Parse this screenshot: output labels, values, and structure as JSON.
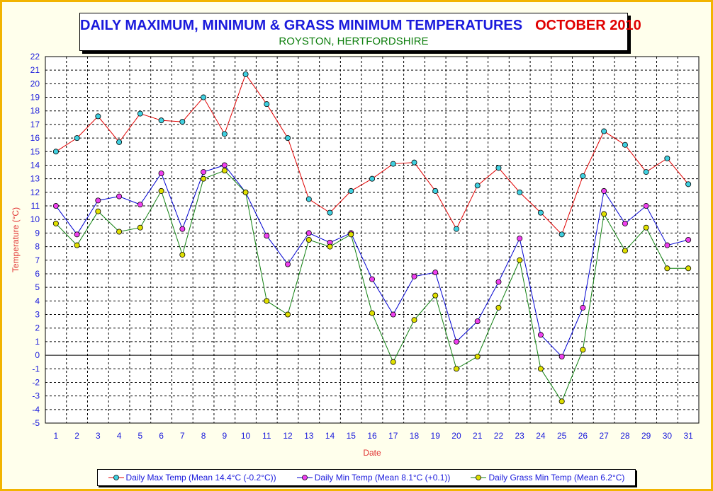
{
  "title": {
    "main": "DAILY MAXIMUM, MINIMUM & GRASS MINIMUM TEMPERATURES",
    "month": "OCTOBER 2010",
    "subtitle": "ROYSTON, HERTFORDSHIRE"
  },
  "colors": {
    "title": "#1a1adc",
    "month": "#e00000",
    "subtitle": "#108010",
    "frame": "#f2b400",
    "axis_title": "#e03030",
    "tick_labels": "#1a1adc"
  },
  "chart_data": {
    "type": "line",
    "title": "DAILY MAXIMUM, MINIMUM & GRASS MINIMUM TEMPERATURES",
    "xlabel": "Date",
    "ylabel": "Temperature (°C)",
    "x": [
      1,
      2,
      3,
      4,
      5,
      6,
      7,
      8,
      9,
      10,
      11,
      12,
      13,
      14,
      15,
      16,
      17,
      18,
      19,
      20,
      21,
      22,
      23,
      24,
      25,
      26,
      27,
      28,
      29,
      30,
      31
    ],
    "ylim": [
      -5,
      22
    ],
    "yticks": [
      -5,
      -4,
      -3,
      -2,
      -1,
      0,
      1,
      2,
      3,
      4,
      5,
      6,
      7,
      8,
      9,
      10,
      11,
      12,
      13,
      14,
      15,
      16,
      17,
      18,
      19,
      20,
      21,
      22
    ],
    "grid": true,
    "legend_position": "bottom",
    "series": [
      {
        "name": "Daily Max Temp (Mean 14.4°C (-0.2°C))",
        "line_color": "#e00000",
        "marker_color": "#40d0e0",
        "values": [
          15.0,
          16.0,
          17.6,
          15.7,
          17.8,
          17.3,
          17.2,
          19.0,
          16.3,
          20.7,
          18.5,
          16.0,
          11.5,
          10.5,
          12.1,
          13.0,
          14.1,
          14.2,
          12.1,
          9.3,
          12.5,
          13.8,
          12.0,
          10.5,
          8.9,
          13.2,
          16.5,
          15.5,
          13.5,
          14.5,
          12.6
        ]
      },
      {
        "name": "Daily Min Temp (Mean 8.1°C (+0.1))",
        "line_color": "#0000d0",
        "marker_color": "#f040f0",
        "values": [
          11.0,
          8.9,
          11.4,
          11.7,
          11.1,
          13.4,
          9.3,
          13.5,
          14.0,
          12.0,
          8.8,
          6.7,
          9.0,
          8.3,
          9.0,
          5.6,
          3.0,
          5.8,
          6.1,
          1.0,
          2.5,
          5.4,
          8.6,
          1.5,
          -0.1,
          3.5,
          12.1,
          9.7,
          11.0,
          8.1,
          8.5
        ]
      },
      {
        "name": "Daily Grass Min Temp (Mean 6.2°C)",
        "line_color": "#108010",
        "marker_color": "#e0e000",
        "values": [
          9.7,
          8.1,
          10.6,
          9.1,
          9.4,
          12.1,
          7.4,
          13.0,
          13.6,
          12.0,
          4.0,
          3.0,
          8.5,
          8.0,
          8.9,
          3.1,
          -0.5,
          2.6,
          4.4,
          -1.0,
          -0.1,
          3.5,
          7.0,
          -1.0,
          -3.4,
          0.4,
          10.4,
          7.7,
          9.4,
          6.4,
          6.4
        ]
      }
    ]
  }
}
